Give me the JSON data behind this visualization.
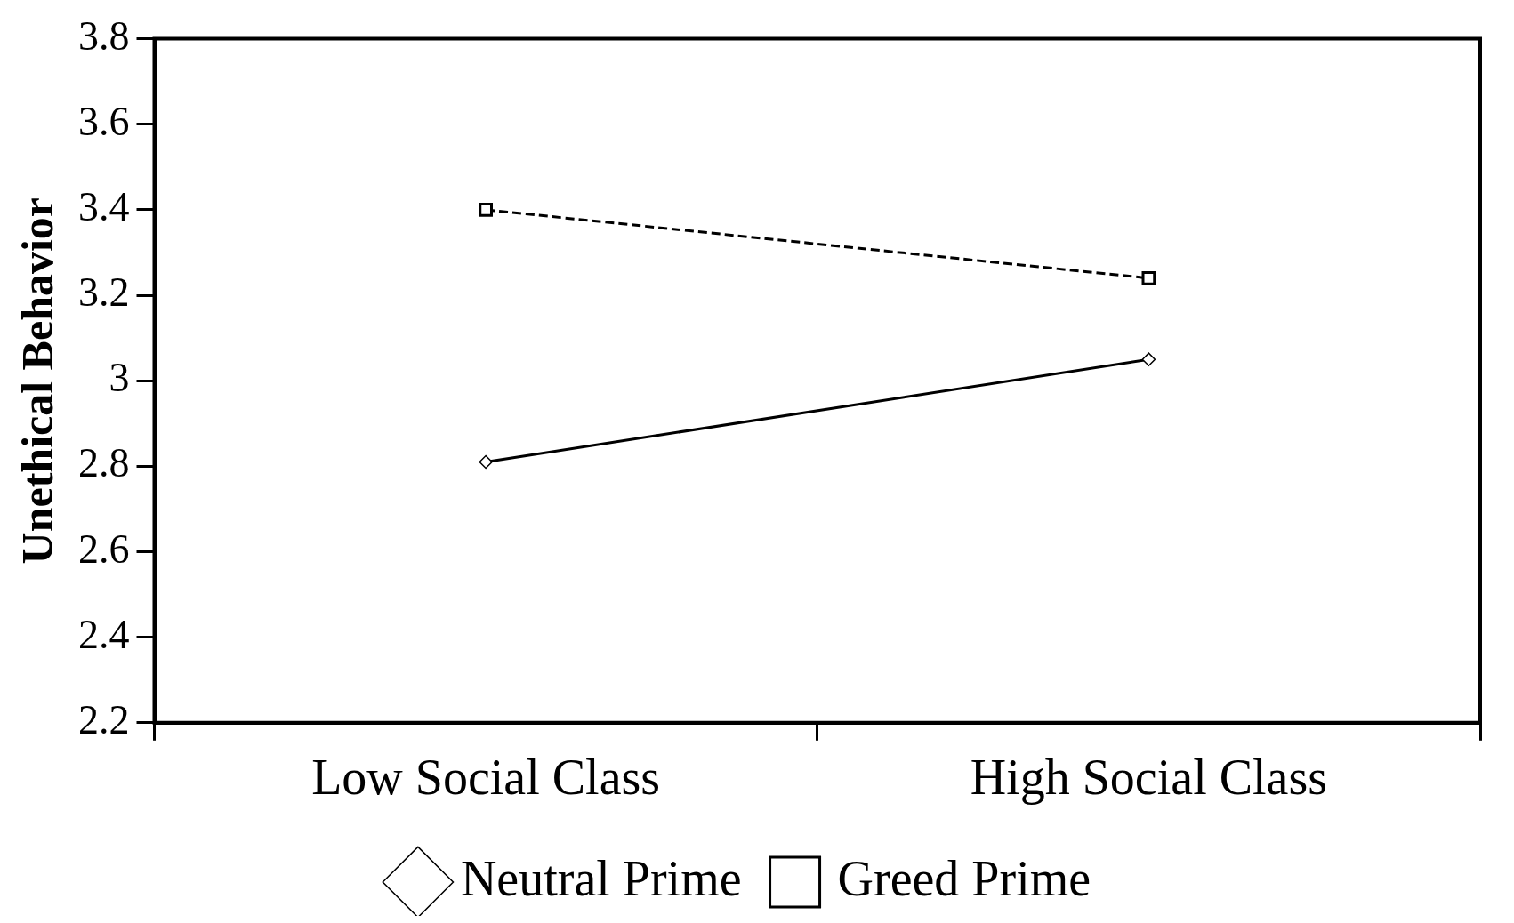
{
  "chart_data": {
    "type": "line",
    "ylabel": "Unethical Behavior",
    "categories": [
      "Low Social Class",
      "High Social Class"
    ],
    "series": [
      {
        "name": "Neutral Prime",
        "color": "#000000",
        "values": [
          2.81,
          3.05
        ],
        "marker": "diamond",
        "line_style": "solid"
      },
      {
        "name": "Greed Prime",
        "color": "#000000",
        "values": [
          3.4,
          3.24
        ],
        "marker": "square",
        "line_style": "dashed"
      }
    ],
    "ylim": [
      2.2,
      3.8
    ],
    "yticks": [
      {
        "value": 2.2,
        "label": "2.2"
      },
      {
        "value": 2.4,
        "label": "2.4"
      },
      {
        "value": 2.6,
        "label": "2.6"
      },
      {
        "value": 2.8,
        "label": "2.8"
      },
      {
        "value": 3,
        "label": "3"
      },
      {
        "value": 3.2,
        "label": "3.2"
      },
      {
        "value": 3.4,
        "label": "3.4"
      },
      {
        "value": 3.6,
        "label": "3.6"
      },
      {
        "value": 3.8,
        "label": "3.8"
      }
    ],
    "grid": false,
    "legend": "bottom"
  }
}
